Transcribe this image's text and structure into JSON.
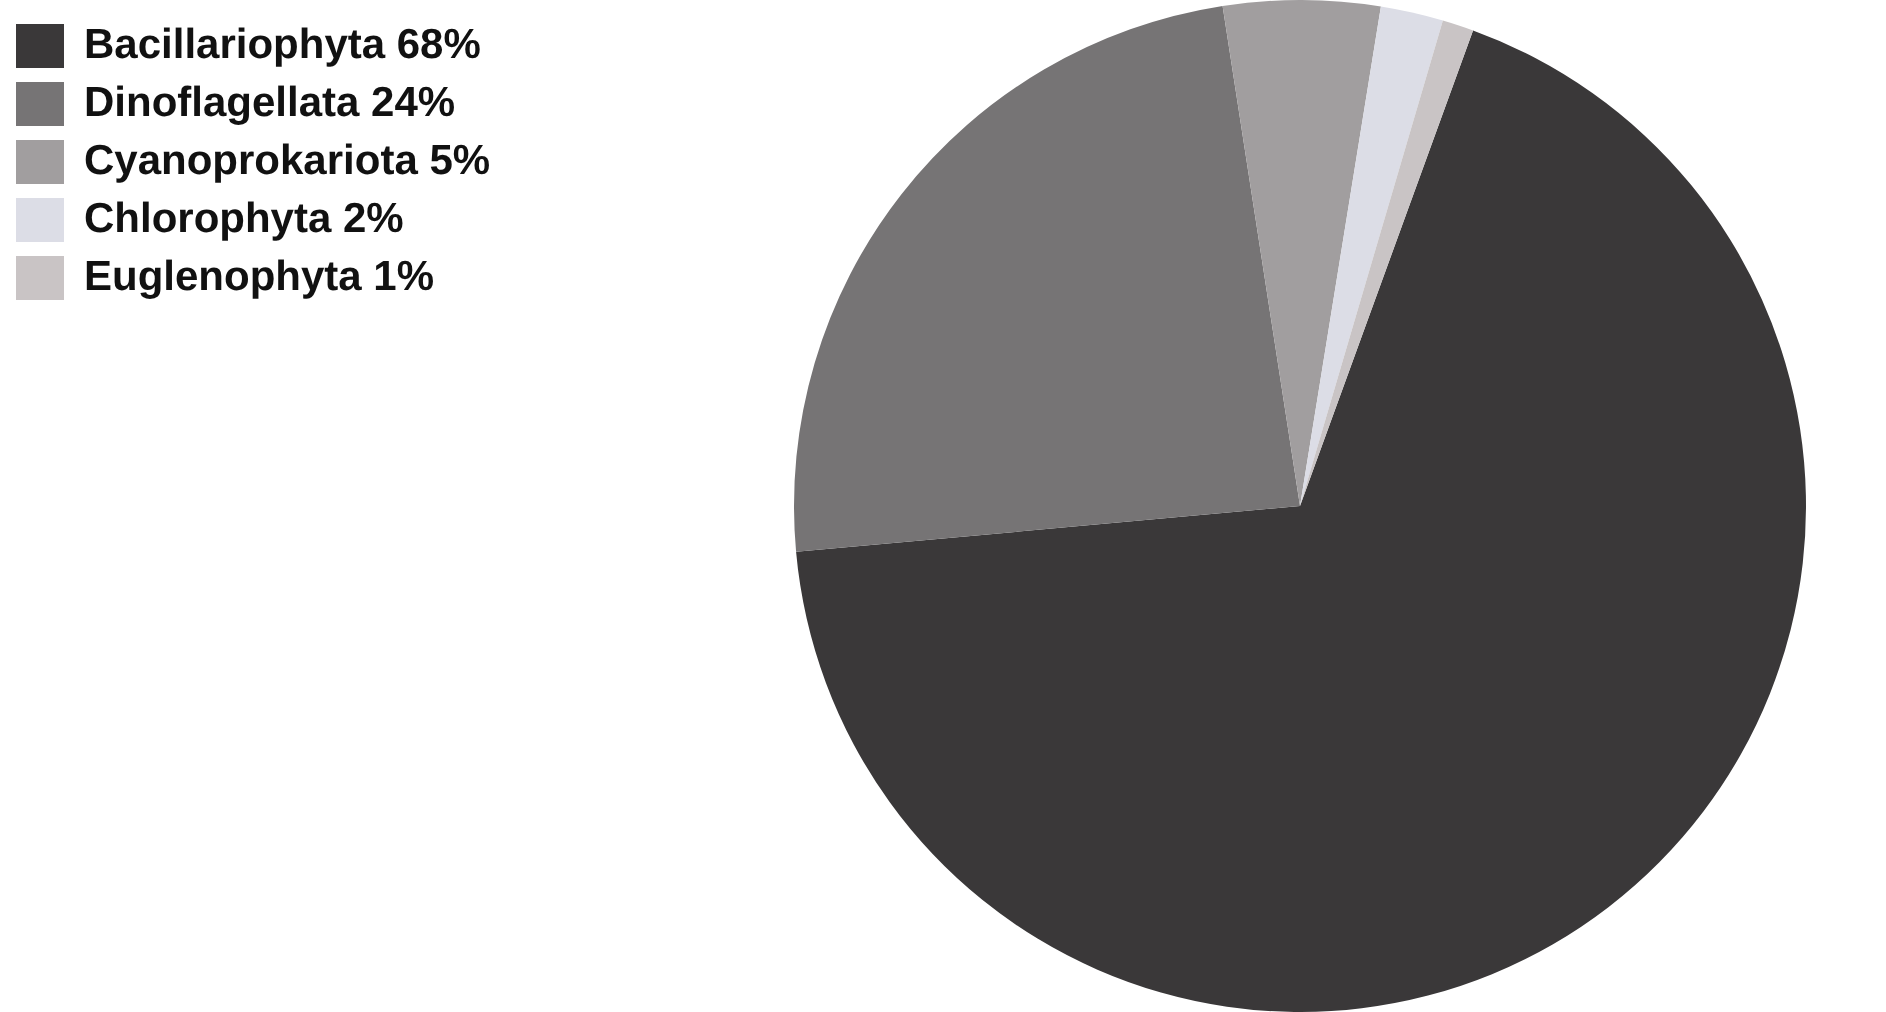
{
  "chart_data": {
    "type": "pie",
    "categories": [
      "Bacillariophyta 68%",
      "Dinoflagellata 24%",
      "Cyanoprokariota 5%",
      "Chlorophyta 2%",
      "Euglenophyta 1%"
    ],
    "values": [
      68,
      24,
      5,
      2,
      1
    ],
    "colors": [
      "#3a3839",
      "#767475",
      "#a19e9f",
      "#dcdde6",
      "#c9c4c5"
    ],
    "legend": "top left"
  }
}
